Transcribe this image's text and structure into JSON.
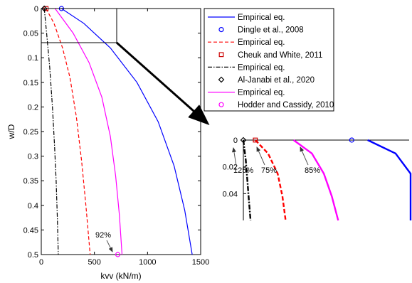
{
  "chart_data": [
    {
      "type": "line",
      "panel": "main",
      "xlabel": "kvv (kN/m)",
      "ylabel": "w/D",
      "xlim": [
        0,
        1500
      ],
      "ylim": [
        0,
        0.5
      ],
      "y_reversed": true,
      "xticks": [
        "0",
        "500",
        "1000",
        "1500"
      ],
      "yticks": [
        "0",
        "0.05",
        "0.1",
        "0.15",
        "0.2",
        "0.25",
        "0.3",
        "0.35",
        "0.4",
        "0.45",
        "0.5"
      ],
      "grid": false,
      "legend_position": "right",
      "series": [
        {
          "name": "Empirical eq.",
          "color": "#0000ff",
          "style": "solid",
          "x": [
            190,
            400,
            650,
            900,
            1100,
            1250,
            1350,
            1420
          ],
          "y": [
            0,
            0.03,
            0.08,
            0.15,
            0.23,
            0.32,
            0.41,
            0.5
          ]
        },
        {
          "name": "Dingle et al., 2008",
          "color": "#0000ff",
          "marker": "circle",
          "x": [
            190
          ],
          "y": [
            0
          ]
        },
        {
          "name": "Empirical eq.",
          "color": "#ff0000",
          "style": "dashed",
          "x": [
            45,
            120,
            200,
            270,
            330,
            380,
            420,
            460
          ],
          "y": [
            0,
            0.03,
            0.08,
            0.14,
            0.22,
            0.31,
            0.4,
            0.5
          ]
        },
        {
          "name": "Cheuk and White, 2011",
          "color": "#cc0000",
          "marker": "square",
          "x": [
            45
          ],
          "y": [
            0
          ]
        },
        {
          "name": "Empirical eq.",
          "color": "#000000",
          "style": "dashdot",
          "x": [
            28,
            50,
            80,
            105,
            125,
            140,
            152,
            160
          ],
          "y": [
            0,
            0.05,
            0.12,
            0.2,
            0.28,
            0.35,
            0.43,
            0.5
          ]
        },
        {
          "name": "Al-Janabi et al., 2020",
          "color": "#000000",
          "marker": "diamond",
          "x": [
            28
          ],
          "y": [
            0
          ]
        },
        {
          "name": "Empirical eq.",
          "color": "#ff00ff",
          "style": "solid",
          "x": [
            130,
            300,
            450,
            570,
            650,
            700,
            735,
            760
          ],
          "y": [
            0,
            0.05,
            0.11,
            0.18,
            0.26,
            0.34,
            0.42,
            0.5
          ]
        },
        {
          "name": "Hodder and Cassidy, 2010",
          "color": "#ff00ff",
          "marker": "circle",
          "x": [
            720
          ],
          "y": [
            0.5
          ]
        }
      ],
      "annotations": [
        {
          "text": "92%",
          "x": 720,
          "y": 0.5
        }
      ]
    },
    {
      "type": "line",
      "panel": "inset",
      "ylim": [
        0,
        0.06
      ],
      "y_reversed": true,
      "yticks": [
        "0",
        "0.02",
        "0.04"
      ],
      "series": [
        {
          "color": "#0000ff",
          "style": "solid",
          "x": [
            185,
            220,
            260,
            300,
            340
          ],
          "y": [
            0,
            0.01,
            0.025,
            0.043,
            0.06
          ]
        },
        {
          "color": "#0000ff",
          "marker": "circle",
          "x": [
            165
          ],
          "y": [
            0
          ]
        },
        {
          "color": "#ff0000",
          "style": "dashed",
          "x": [
            44,
            60,
            72,
            78,
            82
          ],
          "y": [
            0,
            0.01,
            0.025,
            0.042,
            0.06
          ]
        },
        {
          "color": "#cc0000",
          "marker": "square",
          "x": [
            44
          ],
          "y": [
            0
          ]
        },
        {
          "color": "#000000",
          "style": "dashdot",
          "x": [
            29,
            32,
            34,
            36,
            38
          ],
          "y": [
            0,
            0.015,
            0.03,
            0.045,
            0.06
          ]
        },
        {
          "color": "#000000",
          "marker": "diamond",
          "x": [
            29
          ],
          "y": [
            0
          ]
        },
        {
          "color": "#ff00ff",
          "style": "solid",
          "x": [
            92,
            115,
            130,
            140,
            148
          ],
          "y": [
            0,
            0.01,
            0.025,
            0.042,
            0.06
          ]
        }
      ],
      "annotations": [
        {
          "text": "125%",
          "x": 29,
          "y": 0
        },
        {
          "text": "75%",
          "x": 44,
          "y": 0
        },
        {
          "text": "85%",
          "x": 165,
          "y": 0
        }
      ]
    }
  ]
}
